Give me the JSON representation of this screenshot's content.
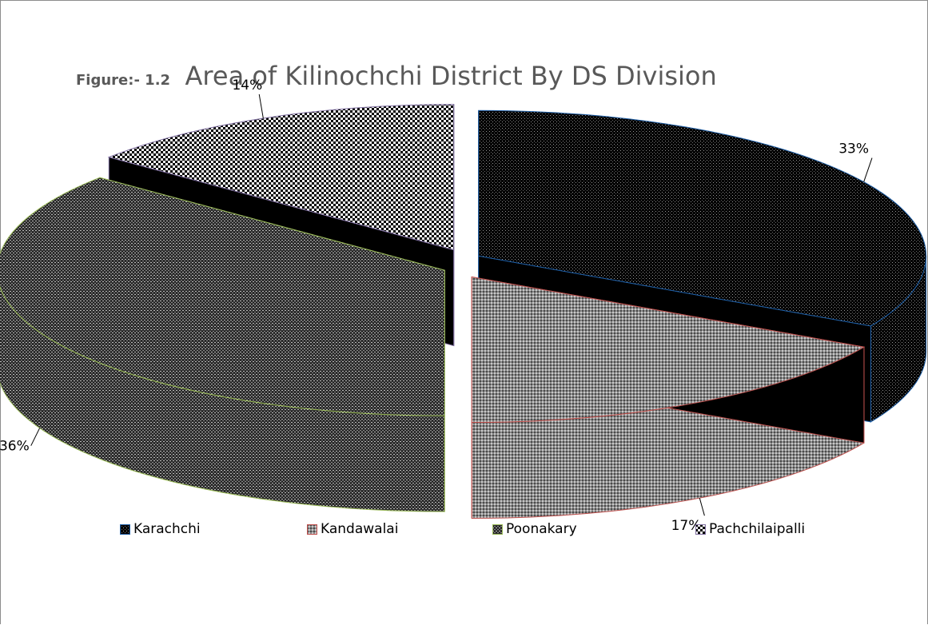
{
  "chart_data": {
    "type": "pie",
    "style": "3d-exploded",
    "figure_label": "Figure:- 1.2",
    "title": "Area of Kilinochchi District By DS Division",
    "series": [
      {
        "name": "Karachchi",
        "value": 33,
        "label": "33%",
        "edge_color": "#1f5fa6",
        "pattern": "dots-dark"
      },
      {
        "name": "Kandawalai",
        "value": 17,
        "label": "17%",
        "edge_color": "#c0504d",
        "pattern": "grid-gray"
      },
      {
        "name": "Poonakary",
        "value": 36,
        "label": "36%",
        "edge_color": "#9bbb59",
        "pattern": "dots-dense"
      },
      {
        "name": "Pachchilaipalli",
        "value": 14,
        "label": "14%",
        "edge_color": "#7f6fa0",
        "pattern": "checker"
      }
    ],
    "legend_position": "bottom"
  }
}
